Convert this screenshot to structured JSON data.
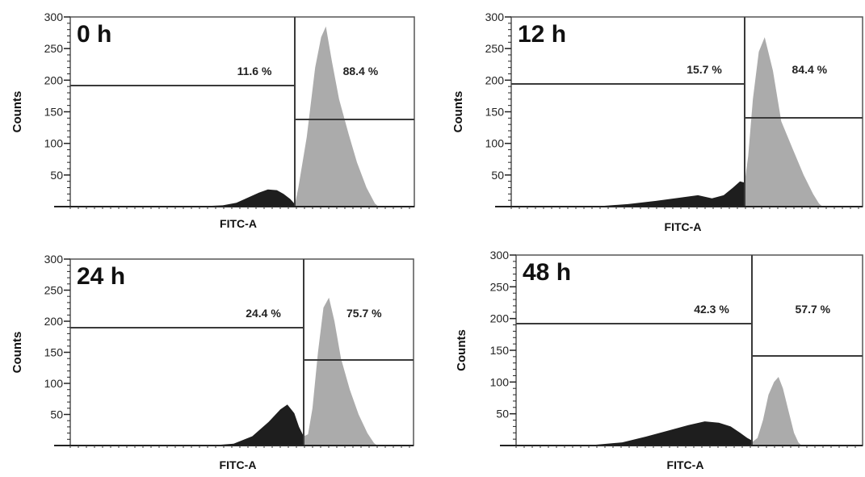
{
  "chart_data": [
    {
      "type": "histogram",
      "time_label": "0 h",
      "xlabel": "FITC-A",
      "ylabel": "Counts",
      "ylim": [
        0,
        300
      ],
      "y_ticks": [
        50,
        100,
        150,
        200,
        250,
        300
      ],
      "gate_left_percent": "11.6 %",
      "gate_right_percent": "88.4 %",
      "colors": {
        "dark_population": "#1e1e1e",
        "light_population": "#ababab",
        "gate": "#3a3a3a"
      },
      "dark_profile": [
        [
          0.0,
          0
        ],
        [
          0.55,
          0
        ],
        [
          0.68,
          2
        ],
        [
          0.74,
          6
        ],
        [
          0.79,
          14
        ],
        [
          0.84,
          22
        ],
        [
          0.88,
          27
        ],
        [
          0.92,
          26
        ],
        [
          0.95,
          20
        ],
        [
          0.98,
          12
        ],
        [
          1.0,
          4
        ]
      ],
      "light_profile": [
        [
          0.0,
          2
        ],
        [
          0.03,
          30
        ],
        [
          0.1,
          110
        ],
        [
          0.17,
          220
        ],
        [
          0.22,
          268
        ],
        [
          0.26,
          285
        ],
        [
          0.31,
          230
        ],
        [
          0.37,
          170
        ],
        [
          0.45,
          115
        ],
        [
          0.52,
          70
        ],
        [
          0.6,
          30
        ],
        [
          0.67,
          5
        ],
        [
          0.7,
          0
        ]
      ]
    },
    {
      "type": "histogram",
      "time_label": "12 h",
      "xlabel": "FITC-A",
      "ylabel": "Counts",
      "ylim": [
        0,
        300
      ],
      "y_ticks": [
        50,
        100,
        150,
        200,
        250,
        300
      ],
      "gate_left_percent": "15.7 %",
      "gate_right_percent": "84.4 %",
      "colors": {
        "dark_population": "#1e1e1e",
        "light_population": "#ababab",
        "gate": "#3a3a3a"
      },
      "dark_profile": [
        [
          0.0,
          0
        ],
        [
          0.35,
          0
        ],
        [
          0.5,
          4
        ],
        [
          0.62,
          9
        ],
        [
          0.72,
          14
        ],
        [
          0.8,
          18
        ],
        [
          0.86,
          13
        ],
        [
          0.91,
          18
        ],
        [
          0.95,
          30
        ],
        [
          0.98,
          40
        ],
        [
          1.0,
          38
        ]
      ],
      "light_profile": [
        [
          0.0,
          38
        ],
        [
          0.03,
          80
        ],
        [
          0.07,
          170
        ],
        [
          0.12,
          245
        ],
        [
          0.17,
          268
        ],
        [
          0.24,
          215
        ],
        [
          0.31,
          135
        ],
        [
          0.41,
          90
        ],
        [
          0.5,
          50
        ],
        [
          0.58,
          20
        ],
        [
          0.63,
          5
        ],
        [
          0.66,
          0
        ]
      ]
    },
    {
      "type": "histogram",
      "time_label": "24 h",
      "xlabel": "FITC-A",
      "ylabel": "Counts",
      "ylim": [
        0,
        300
      ],
      "y_ticks": [
        50,
        100,
        150,
        200,
        250,
        300
      ],
      "gate_left_percent": "24.4 %",
      "gate_right_percent": "75.7 %",
      "colors": {
        "dark_population": "#1e1e1e",
        "light_population": "#ababab",
        "gate": "#3a3a3a"
      },
      "dark_profile": [
        [
          0.0,
          0
        ],
        [
          0.6,
          0
        ],
        [
          0.7,
          3
        ],
        [
          0.78,
          15
        ],
        [
          0.85,
          38
        ],
        [
          0.9,
          58
        ],
        [
          0.93,
          66
        ],
        [
          0.96,
          52
        ],
        [
          0.98,
          30
        ],
        [
          1.0,
          15
        ]
      ],
      "light_profile": [
        [
          0.0,
          15
        ],
        [
          0.04,
          18
        ],
        [
          0.08,
          60
        ],
        [
          0.13,
          150
        ],
        [
          0.18,
          222
        ],
        [
          0.23,
          238
        ],
        [
          0.28,
          200
        ],
        [
          0.34,
          140
        ],
        [
          0.42,
          90
        ],
        [
          0.5,
          50
        ],
        [
          0.58,
          20
        ],
        [
          0.64,
          4
        ],
        [
          0.67,
          0
        ]
      ]
    },
    {
      "type": "histogram",
      "time_label": "48 h",
      "xlabel": "FITC-A",
      "ylabel": "Counts",
      "ylim": [
        0,
        300
      ],
      "y_ticks": [
        50,
        100,
        150,
        200,
        250,
        300
      ],
      "gate_left_percent": "42.3 %",
      "gate_right_percent": "57.7 %",
      "colors": {
        "dark_population": "#1e1e1e",
        "light_population": "#ababab",
        "gate": "#3a3a3a"
      },
      "dark_profile": [
        [
          0.0,
          0
        ],
        [
          0.3,
          0
        ],
        [
          0.45,
          5
        ],
        [
          0.55,
          14
        ],
        [
          0.65,
          24
        ],
        [
          0.73,
          32
        ],
        [
          0.8,
          38
        ],
        [
          0.86,
          36
        ],
        [
          0.91,
          30
        ],
        [
          0.95,
          20
        ],
        [
          0.98,
          12
        ],
        [
          1.0,
          8
        ]
      ],
      "light_profile": [
        [
          0.0,
          5
        ],
        [
          0.05,
          12
        ],
        [
          0.1,
          40
        ],
        [
          0.15,
          80
        ],
        [
          0.2,
          100
        ],
        [
          0.24,
          108
        ],
        [
          0.28,
          90
        ],
        [
          0.33,
          55
        ],
        [
          0.38,
          20
        ],
        [
          0.42,
          5
        ],
        [
          0.45,
          0
        ]
      ]
    }
  ]
}
